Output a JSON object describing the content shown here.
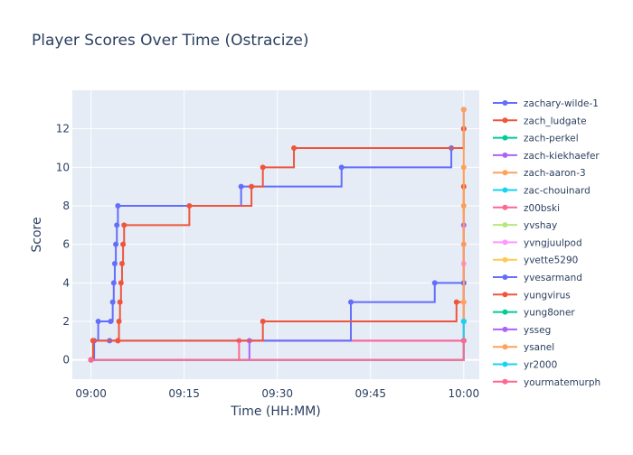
{
  "chart_data": {
    "type": "line",
    "line_shape": "step",
    "title": "Player Scores Over Time (Ostracize)",
    "xlabel": "Time (HH:MM)",
    "ylabel": "Score",
    "xlim": [
      "08:57:00",
      "10:02:30"
    ],
    "ylim": [
      -1,
      14
    ],
    "xticks": [
      "09:00",
      "09:15",
      "09:30",
      "09:45",
      "10:00"
    ],
    "yticks": [
      0,
      2,
      4,
      6,
      8,
      10,
      12
    ],
    "grid": true,
    "legend_position": "right",
    "plot_background": "#E5ECF6",
    "series": [
      {
        "name": "zachary-wilde-1",
        "color": "#636EFA",
        "x": [
          "09:00:00",
          "09:00:30",
          "09:01:10",
          "09:03:10",
          "09:03:30",
          "09:03:40",
          "09:03:50",
          "09:04:00",
          "09:04:10",
          "09:04:20",
          "09:24:10",
          "09:40:20",
          "09:58:00",
          "10:00:00",
          "10:00:00"
        ],
        "y": [
          0,
          1,
          2,
          2,
          3,
          4,
          5,
          6,
          7,
          8,
          9,
          10,
          11,
          12,
          13
        ]
      },
      {
        "name": "zach_ludgate",
        "color": "#EF553B",
        "x": [
          "09:00:00",
          "09:00:20",
          "09:04:20",
          "09:04:30",
          "09:04:40",
          "09:04:50",
          "09:05:00",
          "09:05:10",
          "09:05:20",
          "09:15:50",
          "09:25:50",
          "09:27:40",
          "09:32:40",
          "10:00:00"
        ],
        "y": [
          0,
          1,
          1,
          2,
          3,
          4,
          5,
          6,
          7,
          8,
          9,
          10,
          11,
          12
        ]
      },
      {
        "name": "zach-perkel",
        "color": "#00CC96",
        "x": [
          "09:00:00",
          "10:00:00",
          "10:00:00"
        ],
        "y": [
          0,
          1,
          4
        ]
      },
      {
        "name": "zach-kiekhaefer",
        "color": "#AB63FA",
        "x": [
          "09:00:00",
          "09:25:30",
          "10:00:00"
        ],
        "y": [
          0,
          1,
          2
        ]
      },
      {
        "name": "zach-aaron-3",
        "color": "#FFA15A",
        "x": [
          "09:00:00",
          "10:00:00",
          "10:00:00",
          "10:00:00"
        ],
        "y": [
          0,
          6,
          8,
          10
        ]
      },
      {
        "name": "zac-chouinard",
        "color": "#19D3F3",
        "x": [
          "09:00:00",
          "10:00:00"
        ],
        "y": [
          0,
          2
        ]
      },
      {
        "name": "z00bski",
        "color": "#FF6692",
        "x": [
          "09:00:00",
          "09:23:50",
          "10:00:00"
        ],
        "y": [
          0,
          1,
          1
        ]
      },
      {
        "name": "yvshay",
        "color": "#B6E880",
        "x": [
          "09:00:00",
          "10:00:00"
        ],
        "y": [
          0,
          4
        ]
      },
      {
        "name": "yvngjuulpod",
        "color": "#FF97FF",
        "x": [
          "09:00:00",
          "10:00:00"
        ],
        "y": [
          0,
          5
        ]
      },
      {
        "name": "yvette5290",
        "color": "#FECB52",
        "x": [
          "09:00:00",
          "10:00:00"
        ],
        "y": [
          0,
          4
        ]
      },
      {
        "name": "yvesarmand",
        "color": "#636EFA",
        "x": [
          "09:00:00",
          "09:00:30",
          "09:03:00",
          "09:41:50",
          "09:55:20",
          "10:00:00"
        ],
        "y": [
          0,
          1,
          1,
          3,
          4,
          4
        ]
      },
      {
        "name": "yungvirus",
        "color": "#EF553B",
        "x": [
          "09:00:00",
          "09:00:20",
          "09:04:20",
          "09:27:40",
          "09:58:50",
          "10:00:00"
        ],
        "y": [
          0,
          1,
          1,
          2,
          3,
          9
        ]
      },
      {
        "name": "yung8oner",
        "color": "#00CC96",
        "x": [
          "09:00:00",
          "10:00:00"
        ],
        "y": [
          0,
          1
        ]
      },
      {
        "name": "ysseg",
        "color": "#AB63FA",
        "x": [
          "09:00:00",
          "10:00:00",
          "10:00:00"
        ],
        "y": [
          0,
          2,
          7
        ]
      },
      {
        "name": "ysanel",
        "color": "#FFA15A",
        "x": [
          "09:00:00",
          "10:00:00",
          "10:00:00"
        ],
        "y": [
          0,
          3,
          13
        ]
      },
      {
        "name": "yr2000",
        "color": "#19D3F3",
        "x": [
          "09:00:00",
          "10:00:00"
        ],
        "y": [
          0,
          2
        ]
      },
      {
        "name": "yourmatemurph",
        "color": "#FF6692",
        "x": [
          "09:00:00",
          "10:00:00"
        ],
        "y": [
          0,
          1
        ]
      }
    ]
  }
}
